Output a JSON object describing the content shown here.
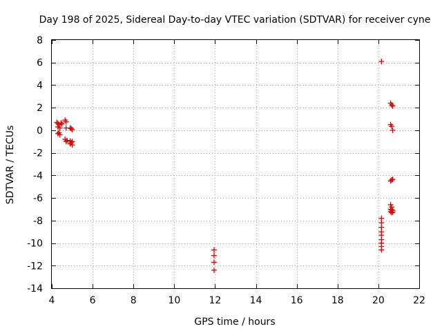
{
  "chart_data": {
    "type": "scatter",
    "title": "Day 198 of 2025, Sidereal Day-to-day VTEC variation (SDTVAR) for receiver cyne",
    "xlabel": "GPS time / hours",
    "ylabel": "SDTVAR / TECUs",
    "xlim": [
      4,
      22
    ],
    "ylim": [
      -14,
      8
    ],
    "xticks": [
      4,
      6,
      8,
      10,
      12,
      14,
      16,
      18,
      20,
      22
    ],
    "yticks": [
      -14,
      -12,
      -10,
      -8,
      -6,
      -4,
      -2,
      0,
      2,
      4,
      6,
      8
    ],
    "grid": true,
    "marker": "plus",
    "color": "#e00000",
    "series": [
      {
        "name": "SDTVAR",
        "points": [
          [
            4.25,
            0.7
          ],
          [
            4.3,
            0.6
          ],
          [
            4.3,
            0.3
          ],
          [
            4.35,
            0.5
          ],
          [
            4.4,
            0.2
          ],
          [
            4.45,
            0.65
          ],
          [
            4.5,
            0.55
          ],
          [
            4.3,
            -0.3
          ],
          [
            4.35,
            -0.2
          ],
          [
            4.4,
            -0.4
          ],
          [
            4.65,
            0.9
          ],
          [
            4.7,
            0.75
          ],
          [
            4.7,
            0.2
          ],
          [
            4.65,
            -0.8
          ],
          [
            4.7,
            -1.0
          ],
          [
            4.75,
            -0.9
          ],
          [
            4.9,
            0.2
          ],
          [
            4.95,
            0.15
          ],
          [
            5.0,
            0.05
          ],
          [
            4.9,
            -0.95
          ],
          [
            4.9,
            -1.2
          ],
          [
            4.95,
            -1.1
          ],
          [
            5.0,
            -1.3
          ],
          [
            5.0,
            -1.0
          ],
          [
            11.95,
            -10.6
          ],
          [
            11.95,
            -11.1
          ],
          [
            11.95,
            -11.7
          ],
          [
            11.95,
            -12.4
          ],
          [
            20.15,
            6.1
          ],
          [
            20.15,
            -7.8
          ],
          [
            20.15,
            -8.2
          ],
          [
            20.15,
            -8.6
          ],
          [
            20.15,
            -9.0
          ],
          [
            20.15,
            -9.3
          ],
          [
            20.15,
            -9.7
          ],
          [
            20.15,
            -10.0
          ],
          [
            20.15,
            -10.3
          ],
          [
            20.15,
            -10.6
          ],
          [
            20.6,
            2.4
          ],
          [
            20.65,
            2.25
          ],
          [
            20.7,
            2.15
          ],
          [
            20.6,
            0.5
          ],
          [
            20.65,
            0.35
          ],
          [
            20.7,
            0.0
          ],
          [
            20.6,
            -4.5
          ],
          [
            20.65,
            -4.4
          ],
          [
            20.7,
            -4.35
          ],
          [
            20.6,
            -6.6
          ],
          [
            20.65,
            -6.8
          ],
          [
            20.6,
            -7.0
          ],
          [
            20.65,
            -7.05
          ],
          [
            20.7,
            -7.1
          ],
          [
            20.6,
            -7.2
          ],
          [
            20.65,
            -7.3
          ],
          [
            20.7,
            -7.25
          ]
        ]
      }
    ]
  }
}
